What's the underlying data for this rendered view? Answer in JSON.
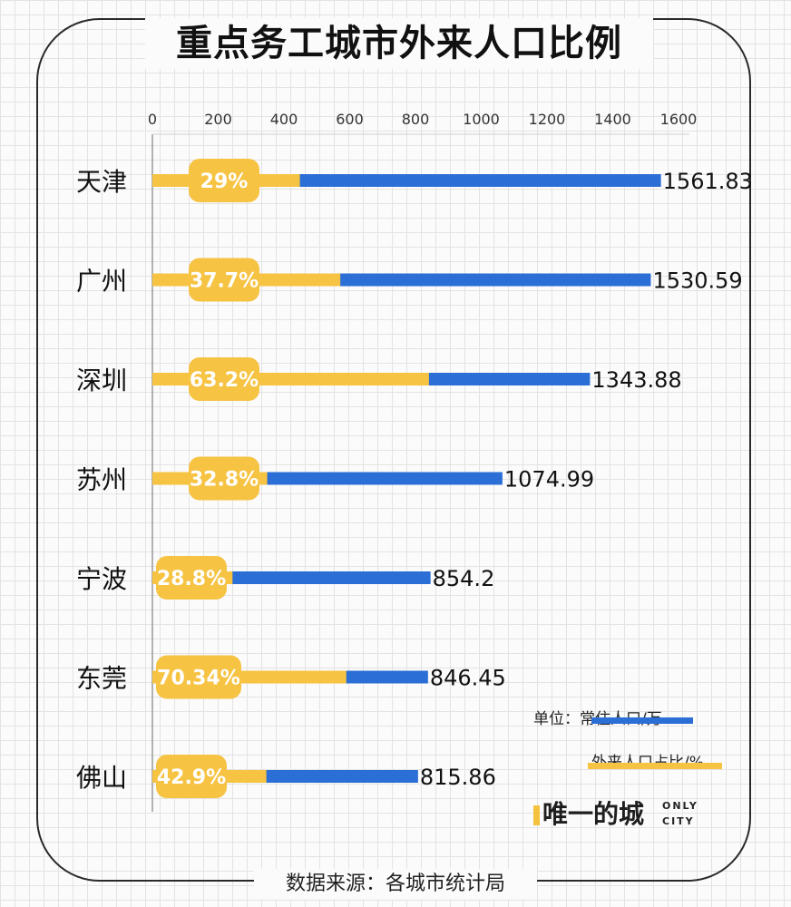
{
  "title": "重点务工城市外来人口比例",
  "source": "数据来源：各城市统计局",
  "legend": {
    "unit_prefix": "单位：",
    "population_label": "常住人口/万",
    "ratio_label": "外来人口占比/%"
  },
  "brand": {
    "name": "唯一的城",
    "sub_line1": "ONLY",
    "sub_line2": "CITY"
  },
  "colors": {
    "population": "#2b6fd6",
    "ratio": "#f6c343",
    "badge": "#f6c343",
    "badge_text": "#ffffff"
  },
  "chart_data": {
    "type": "bar",
    "orientation": "horizontal",
    "title": "重点务工城市外来人口比例",
    "categories": [
      "天津",
      "广州",
      "深圳",
      "苏州",
      "宁波",
      "东莞",
      "佛山"
    ],
    "series": [
      {
        "name": "常住人口/万",
        "values": [
          1561.83,
          1530.59,
          1343.88,
          1074.99,
          854.2,
          846.45,
          815.86
        ],
        "value_labels": [
          "1561.83",
          "1530.59",
          "1343.88",
          "1074.99",
          "854.2",
          "846.45",
          "815.86"
        ]
      },
      {
        "name": "外来人口占比/%",
        "values": [
          29,
          37.7,
          63.2,
          32.8,
          28.8,
          70.34,
          42.9
        ],
        "value_labels": [
          "29%",
          "37.7%",
          "63.2%",
          "32.8%",
          "28.8%",
          "70.34%",
          "42.9%"
        ]
      }
    ],
    "x_ticks": [
      "0",
      "200",
      "400",
      "600",
      "800",
      "1000",
      "1200",
      "1400",
      "1600"
    ],
    "xlim": [
      0,
      1600
    ],
    "axis_position": "top",
    "grid": true,
    "legend_position": "bottom-right"
  }
}
